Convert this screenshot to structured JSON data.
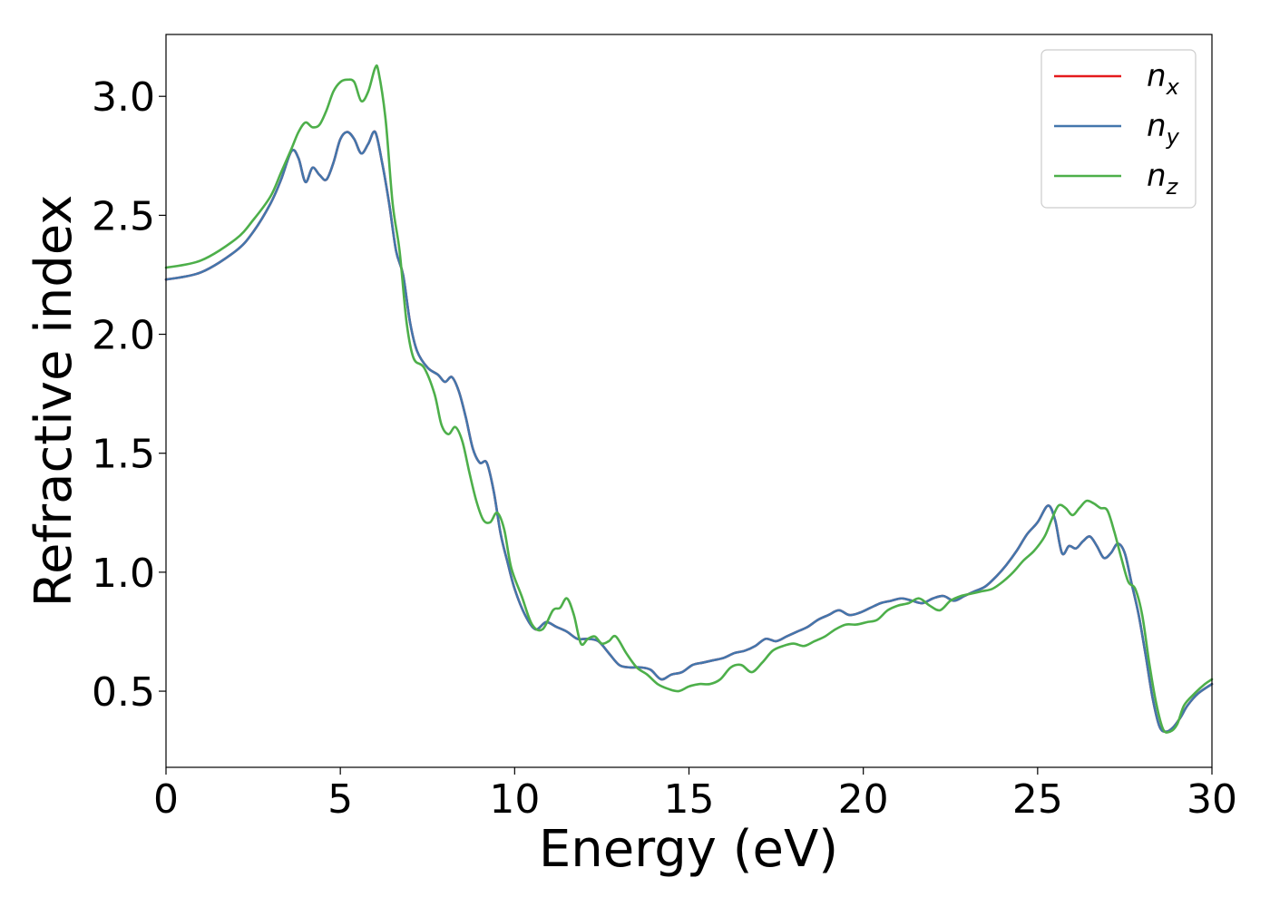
{
  "chart_data": {
    "type": "line",
    "xlabel": "Energy (eV)",
    "ylabel": "Refractive index",
    "xlim": [
      0,
      30
    ],
    "ylim": [
      0.18,
      3.26
    ],
    "xticks": [
      0,
      5,
      10,
      15,
      20,
      25,
      30
    ],
    "xtick_labels": [
      "0",
      "5",
      "10",
      "15",
      "20",
      "25",
      "30"
    ],
    "yticks": [
      0.5,
      1.0,
      1.5,
      2.0,
      2.5,
      3.0
    ],
    "ytick_labels": [
      "0.5",
      "1.0",
      "1.5",
      "2.0",
      "2.5",
      "3.0"
    ],
    "grid": false,
    "legend_position": "top-right",
    "series": [
      {
        "name": "n_x",
        "label_base": "n",
        "label_sub": "x",
        "color": "#e41a1c",
        "x": [
          0,
          1,
          2,
          2.5,
          3,
          3.3,
          3.6,
          3.8,
          4.0,
          4.2,
          4.4,
          4.6,
          4.8,
          5.0,
          5.2,
          5.4,
          5.6,
          5.8,
          6.0,
          6.2,
          6.4,
          6.6,
          6.8,
          7.0,
          7.2,
          7.5,
          7.8,
          8.0,
          8.2,
          8.4,
          8.6,
          8.8,
          9.0,
          9.2,
          9.4,
          9.6,
          9.8,
          10.0,
          10.3,
          10.6,
          10.9,
          11.2,
          11.5,
          11.8,
          12.1,
          12.4,
          12.7,
          13.0,
          13.3,
          13.6,
          13.9,
          14.2,
          14.5,
          14.8,
          15.1,
          15.4,
          15.7,
          16.0,
          16.3,
          16.6,
          16.9,
          17.2,
          17.5,
          17.8,
          18.1,
          18.4,
          18.7,
          19.0,
          19.3,
          19.6,
          19.9,
          20.2,
          20.5,
          20.8,
          21.1,
          21.4,
          21.7,
          22.0,
          22.3,
          22.6,
          22.9,
          23.2,
          23.5,
          23.8,
          24.1,
          24.4,
          24.7,
          25.0,
          25.3,
          25.5,
          25.7,
          25.9,
          26.1,
          26.3,
          26.5,
          26.7,
          26.9,
          27.1,
          27.3,
          27.5,
          27.7,
          27.9,
          28.1,
          28.3,
          28.5,
          28.7,
          28.9,
          29.1,
          29.3,
          29.6,
          30.0
        ],
        "values": [
          2.23,
          2.26,
          2.35,
          2.43,
          2.55,
          2.65,
          2.77,
          2.74,
          2.64,
          2.7,
          2.67,
          2.65,
          2.72,
          2.82,
          2.85,
          2.82,
          2.76,
          2.8,
          2.85,
          2.72,
          2.55,
          2.35,
          2.25,
          2.05,
          1.93,
          1.86,
          1.83,
          1.8,
          1.82,
          1.76,
          1.65,
          1.52,
          1.46,
          1.46,
          1.34,
          1.16,
          1.04,
          0.93,
          0.82,
          0.76,
          0.79,
          0.77,
          0.75,
          0.72,
          0.72,
          0.71,
          0.66,
          0.61,
          0.6,
          0.6,
          0.59,
          0.55,
          0.57,
          0.58,
          0.61,
          0.62,
          0.63,
          0.64,
          0.66,
          0.67,
          0.69,
          0.72,
          0.71,
          0.73,
          0.75,
          0.77,
          0.8,
          0.82,
          0.84,
          0.82,
          0.83,
          0.85,
          0.87,
          0.88,
          0.89,
          0.88,
          0.87,
          0.89,
          0.9,
          0.88,
          0.9,
          0.92,
          0.94,
          0.98,
          1.03,
          1.09,
          1.16,
          1.21,
          1.28,
          1.22,
          1.08,
          1.11,
          1.1,
          1.13,
          1.15,
          1.11,
          1.06,
          1.08,
          1.12,
          1.08,
          0.95,
          0.82,
          0.65,
          0.47,
          0.35,
          0.33,
          0.35,
          0.39,
          0.44,
          0.49,
          0.53
        ]
      },
      {
        "name": "n_y",
        "label_base": "n",
        "label_sub": "y",
        "color": "#4376ac",
        "x": [
          0,
          1,
          2,
          2.5,
          3,
          3.3,
          3.6,
          3.8,
          4.0,
          4.2,
          4.4,
          4.6,
          4.8,
          5.0,
          5.2,
          5.4,
          5.6,
          5.8,
          6.0,
          6.2,
          6.4,
          6.6,
          6.8,
          7.0,
          7.2,
          7.5,
          7.8,
          8.0,
          8.2,
          8.4,
          8.6,
          8.8,
          9.0,
          9.2,
          9.4,
          9.6,
          9.8,
          10.0,
          10.3,
          10.6,
          10.9,
          11.2,
          11.5,
          11.8,
          12.1,
          12.4,
          12.7,
          13.0,
          13.3,
          13.6,
          13.9,
          14.2,
          14.5,
          14.8,
          15.1,
          15.4,
          15.7,
          16.0,
          16.3,
          16.6,
          16.9,
          17.2,
          17.5,
          17.8,
          18.1,
          18.4,
          18.7,
          19.0,
          19.3,
          19.6,
          19.9,
          20.2,
          20.5,
          20.8,
          21.1,
          21.4,
          21.7,
          22.0,
          22.3,
          22.6,
          22.9,
          23.2,
          23.5,
          23.8,
          24.1,
          24.4,
          24.7,
          25.0,
          25.3,
          25.5,
          25.7,
          25.9,
          26.1,
          26.3,
          26.5,
          26.7,
          26.9,
          27.1,
          27.3,
          27.5,
          27.7,
          27.9,
          28.1,
          28.3,
          28.5,
          28.7,
          28.9,
          29.1,
          29.3,
          29.6,
          30.0
        ],
        "values": [
          2.23,
          2.26,
          2.35,
          2.43,
          2.55,
          2.65,
          2.77,
          2.74,
          2.64,
          2.7,
          2.67,
          2.65,
          2.72,
          2.82,
          2.85,
          2.82,
          2.76,
          2.8,
          2.85,
          2.72,
          2.55,
          2.35,
          2.25,
          2.05,
          1.93,
          1.86,
          1.83,
          1.8,
          1.82,
          1.76,
          1.65,
          1.52,
          1.46,
          1.46,
          1.34,
          1.16,
          1.04,
          0.93,
          0.82,
          0.76,
          0.79,
          0.77,
          0.75,
          0.72,
          0.72,
          0.71,
          0.66,
          0.61,
          0.6,
          0.6,
          0.59,
          0.55,
          0.57,
          0.58,
          0.61,
          0.62,
          0.63,
          0.64,
          0.66,
          0.67,
          0.69,
          0.72,
          0.71,
          0.73,
          0.75,
          0.77,
          0.8,
          0.82,
          0.84,
          0.82,
          0.83,
          0.85,
          0.87,
          0.88,
          0.89,
          0.88,
          0.87,
          0.89,
          0.9,
          0.88,
          0.9,
          0.92,
          0.94,
          0.98,
          1.03,
          1.09,
          1.16,
          1.21,
          1.28,
          1.22,
          1.08,
          1.11,
          1.1,
          1.13,
          1.15,
          1.11,
          1.06,
          1.08,
          1.12,
          1.08,
          0.95,
          0.82,
          0.65,
          0.47,
          0.35,
          0.33,
          0.35,
          0.39,
          0.44,
          0.49,
          0.53
        ]
      },
      {
        "name": "n_z",
        "label_base": "n",
        "label_sub": "z",
        "color": "#4daf4a",
        "x": [
          0,
          1,
          2,
          2.5,
          3,
          3.3,
          3.6,
          3.8,
          4.0,
          4.2,
          4.4,
          4.6,
          4.8,
          5.0,
          5.2,
          5.4,
          5.6,
          5.8,
          6.0,
          6.1,
          6.3,
          6.5,
          6.7,
          6.9,
          7.1,
          7.4,
          7.7,
          7.9,
          8.1,
          8.3,
          8.5,
          8.7,
          8.9,
          9.1,
          9.3,
          9.5,
          9.7,
          9.9,
          10.2,
          10.5,
          10.8,
          11.1,
          11.3,
          11.5,
          11.7,
          11.9,
          12.1,
          12.3,
          12.5,
          12.7,
          12.9,
          13.2,
          13.5,
          13.8,
          14.1,
          14.4,
          14.7,
          15.0,
          15.3,
          15.6,
          15.9,
          16.2,
          16.5,
          16.8,
          17.1,
          17.4,
          17.7,
          18.0,
          18.3,
          18.6,
          18.9,
          19.2,
          19.5,
          19.8,
          20.1,
          20.4,
          20.7,
          21.0,
          21.3,
          21.6,
          21.9,
          22.2,
          22.5,
          22.8,
          23.1,
          23.4,
          23.7,
          24.0,
          24.3,
          24.6,
          24.9,
          25.2,
          25.4,
          25.6,
          25.8,
          26.0,
          26.2,
          26.4,
          26.6,
          26.8,
          27.0,
          27.2,
          27.4,
          27.6,
          27.8,
          28.0,
          28.2,
          28.4,
          28.6,
          28.8,
          29.0,
          29.2,
          29.5,
          29.8,
          30.0
        ],
        "values": [
          2.28,
          2.31,
          2.4,
          2.48,
          2.58,
          2.68,
          2.78,
          2.85,
          2.89,
          2.87,
          2.88,
          2.94,
          3.02,
          3.06,
          3.07,
          3.06,
          2.98,
          3.02,
          3.12,
          3.1,
          2.9,
          2.55,
          2.35,
          2.05,
          1.9,
          1.86,
          1.75,
          1.62,
          1.58,
          1.61,
          1.55,
          1.42,
          1.3,
          1.22,
          1.21,
          1.25,
          1.18,
          1.02,
          0.9,
          0.78,
          0.76,
          0.84,
          0.85,
          0.89,
          0.82,
          0.7,
          0.72,
          0.73,
          0.7,
          0.71,
          0.73,
          0.66,
          0.6,
          0.57,
          0.53,
          0.51,
          0.5,
          0.52,
          0.53,
          0.53,
          0.55,
          0.6,
          0.61,
          0.58,
          0.62,
          0.67,
          0.69,
          0.7,
          0.69,
          0.71,
          0.73,
          0.76,
          0.78,
          0.78,
          0.79,
          0.8,
          0.84,
          0.86,
          0.87,
          0.89,
          0.86,
          0.84,
          0.88,
          0.9,
          0.91,
          0.92,
          0.93,
          0.96,
          1.0,
          1.05,
          1.09,
          1.15,
          1.22,
          1.28,
          1.27,
          1.24,
          1.27,
          1.3,
          1.29,
          1.27,
          1.26,
          1.17,
          1.06,
          0.96,
          0.93,
          0.82,
          0.62,
          0.45,
          0.34,
          0.33,
          0.36,
          0.44,
          0.49,
          0.53,
          0.55
        ]
      }
    ]
  }
}
